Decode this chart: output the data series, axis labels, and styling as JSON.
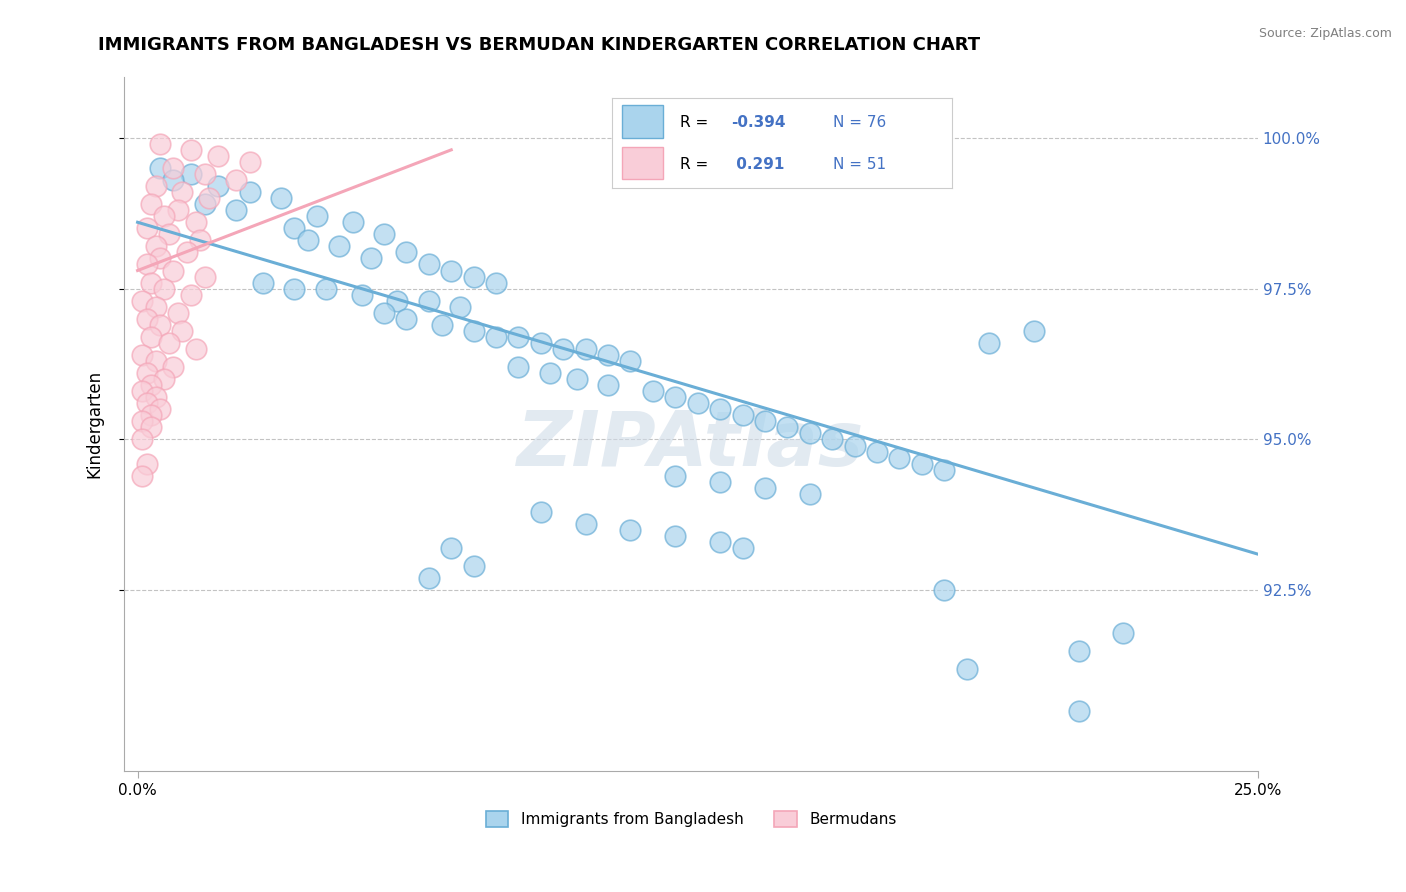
{
  "title": "IMMIGRANTS FROM BANGLADESH VS BERMUDAN KINDERGARTEN CORRELATION CHART",
  "source": "Source: ZipAtlas.com",
  "ylabel": "Kindergarten",
  "watermark": "ZIPAtlas",
  "blue_color": "#6aaed6",
  "pink_color": "#f4a6b8",
  "blue_fill": "#aad4ed",
  "pink_fill": "#f9cdd8",
  "blue_scatter": [
    [
      0.005,
      99.5
    ],
    [
      0.012,
      99.4
    ],
    [
      0.008,
      99.3
    ],
    [
      0.018,
      99.2
    ],
    [
      0.025,
      99.1
    ],
    [
      0.032,
      99.0
    ],
    [
      0.015,
      98.9
    ],
    [
      0.022,
      98.8
    ],
    [
      0.04,
      98.7
    ],
    [
      0.048,
      98.6
    ],
    [
      0.035,
      98.5
    ],
    [
      0.055,
      98.4
    ],
    [
      0.038,
      98.3
    ],
    [
      0.045,
      98.2
    ],
    [
      0.06,
      98.1
    ],
    [
      0.052,
      98.0
    ],
    [
      0.065,
      97.9
    ],
    [
      0.07,
      97.8
    ],
    [
      0.075,
      97.7
    ],
    [
      0.08,
      97.6
    ],
    [
      0.028,
      97.6
    ],
    [
      0.035,
      97.5
    ],
    [
      0.042,
      97.5
    ],
    [
      0.05,
      97.4
    ],
    [
      0.058,
      97.3
    ],
    [
      0.065,
      97.3
    ],
    [
      0.072,
      97.2
    ],
    [
      0.055,
      97.1
    ],
    [
      0.06,
      97.0
    ],
    [
      0.068,
      96.9
    ],
    [
      0.075,
      96.8
    ],
    [
      0.08,
      96.7
    ],
    [
      0.085,
      96.7
    ],
    [
      0.09,
      96.6
    ],
    [
      0.095,
      96.5
    ],
    [
      0.1,
      96.5
    ],
    [
      0.105,
      96.4
    ],
    [
      0.11,
      96.3
    ],
    [
      0.085,
      96.2
    ],
    [
      0.092,
      96.1
    ],
    [
      0.098,
      96.0
    ],
    [
      0.105,
      95.9
    ],
    [
      0.115,
      95.8
    ],
    [
      0.12,
      95.7
    ],
    [
      0.125,
      95.6
    ],
    [
      0.13,
      95.5
    ],
    [
      0.135,
      95.4
    ],
    [
      0.14,
      95.3
    ],
    [
      0.145,
      95.2
    ],
    [
      0.15,
      95.1
    ],
    [
      0.155,
      95.0
    ],
    [
      0.16,
      94.9
    ],
    [
      0.165,
      94.8
    ],
    [
      0.17,
      94.7
    ],
    [
      0.175,
      94.6
    ],
    [
      0.18,
      94.5
    ],
    [
      0.12,
      94.4
    ],
    [
      0.13,
      94.3
    ],
    [
      0.14,
      94.2
    ],
    [
      0.15,
      94.1
    ],
    [
      0.09,
      93.8
    ],
    [
      0.1,
      93.6
    ],
    [
      0.11,
      93.5
    ],
    [
      0.12,
      93.4
    ],
    [
      0.13,
      93.3
    ],
    [
      0.135,
      93.2
    ],
    [
      0.07,
      93.2
    ],
    [
      0.075,
      92.9
    ],
    [
      0.065,
      92.7
    ],
    [
      0.2,
      96.8
    ],
    [
      0.19,
      96.6
    ],
    [
      0.21,
      91.5
    ],
    [
      0.185,
      91.2
    ],
    [
      0.21,
      90.5
    ],
    [
      0.22,
      91.8
    ],
    [
      0.18,
      92.5
    ]
  ],
  "pink_scatter": [
    [
      0.005,
      99.9
    ],
    [
      0.012,
      99.8
    ],
    [
      0.018,
      99.7
    ],
    [
      0.025,
      99.6
    ],
    [
      0.008,
      99.5
    ],
    [
      0.015,
      99.4
    ],
    [
      0.022,
      99.3
    ],
    [
      0.004,
      99.2
    ],
    [
      0.01,
      99.1
    ],
    [
      0.016,
      99.0
    ],
    [
      0.003,
      98.9
    ],
    [
      0.009,
      98.8
    ],
    [
      0.006,
      98.7
    ],
    [
      0.013,
      98.6
    ],
    [
      0.002,
      98.5
    ],
    [
      0.007,
      98.4
    ],
    [
      0.014,
      98.3
    ],
    [
      0.004,
      98.2
    ],
    [
      0.011,
      98.1
    ],
    [
      0.005,
      98.0
    ],
    [
      0.002,
      97.9
    ],
    [
      0.008,
      97.8
    ],
    [
      0.015,
      97.7
    ],
    [
      0.003,
      97.6
    ],
    [
      0.006,
      97.5
    ],
    [
      0.012,
      97.4
    ],
    [
      0.001,
      97.3
    ],
    [
      0.004,
      97.2
    ],
    [
      0.009,
      97.1
    ],
    [
      0.002,
      97.0
    ],
    [
      0.005,
      96.9
    ],
    [
      0.01,
      96.8
    ],
    [
      0.003,
      96.7
    ],
    [
      0.007,
      96.6
    ],
    [
      0.013,
      96.5
    ],
    [
      0.001,
      96.4
    ],
    [
      0.004,
      96.3
    ],
    [
      0.008,
      96.2
    ],
    [
      0.002,
      96.1
    ],
    [
      0.006,
      96.0
    ],
    [
      0.003,
      95.9
    ],
    [
      0.001,
      95.8
    ],
    [
      0.004,
      95.7
    ],
    [
      0.002,
      95.6
    ],
    [
      0.005,
      95.5
    ],
    [
      0.003,
      95.4
    ],
    [
      0.001,
      95.3
    ],
    [
      0.003,
      95.2
    ],
    [
      0.001,
      95.0
    ],
    [
      0.002,
      94.6
    ],
    [
      0.001,
      94.4
    ]
  ],
  "blue_line_x": [
    0.0,
    0.25
  ],
  "blue_line_y": [
    98.6,
    93.1
  ],
  "pink_line_x": [
    0.0,
    0.07
  ],
  "pink_line_y": [
    97.8,
    99.8
  ],
  "xlim": [
    -0.003,
    0.25
  ],
  "ylim": [
    89.5,
    101.0
  ],
  "ytick_vals": [
    92.5,
    95.0,
    97.5,
    100.0
  ],
  "ytick_labels": [
    "92.5%",
    "95.0%",
    "97.5%",
    "100.0%"
  ],
  "xtick_vals": [
    0.0,
    0.25
  ],
  "xtick_labels": [
    "0.0%",
    "25.0%"
  ],
  "legend_blue_R": "R = -0.394",
  "legend_blue_N": "N = 76",
  "legend_pink_R": "R =  0.291",
  "legend_pink_N": "N = 51",
  "legend_label_blue": "Immigrants from Bangladesh",
  "legend_label_pink": "Bermudans"
}
